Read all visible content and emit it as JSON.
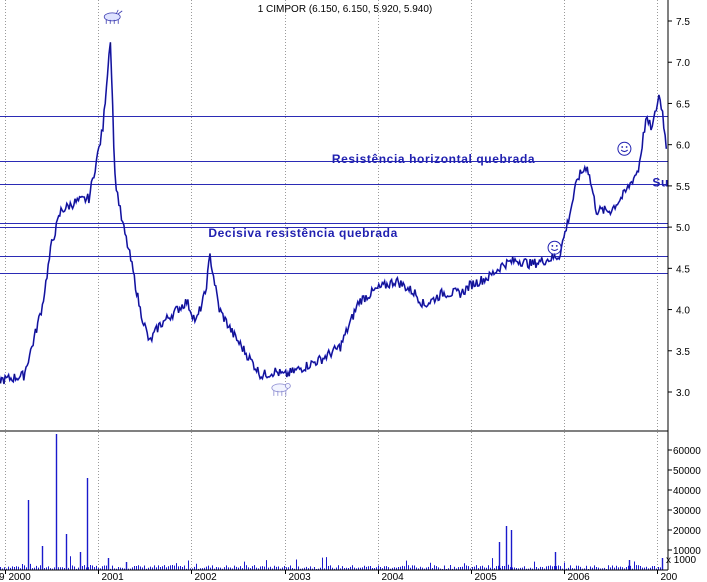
{
  "chart_data": {
    "type": "line",
    "title": "1 CIMPOR (6.150, 6.150, 5.920, 5.940)",
    "x_tick_labels": [
      "9",
      "2000",
      "2001",
      "2002",
      "2003",
      "2004",
      "2005",
      "2006",
      "200"
    ],
    "price_axis": {
      "ticks": [
        3.0,
        3.5,
        4.0,
        4.5,
        5.0,
        5.5,
        6.0,
        6.5,
        7.0,
        7.5
      ],
      "tick_labels": [
        "3.0",
        "3.5",
        "4.0",
        "4.5",
        "5.0",
        "5.5",
        "6.0",
        "6.5",
        "7.0",
        "7.5"
      ],
      "ylim": [
        2.85,
        7.8
      ]
    },
    "volume_axis": {
      "ticks": [
        10000,
        20000,
        30000,
        40000,
        50000,
        60000
      ],
      "tick_labels": [
        "10000",
        "20000",
        "30000",
        "40000",
        "50000",
        "60000"
      ],
      "ylim": [
        0,
        70000
      ],
      "scale_label": "x 1000"
    },
    "grid": "vertical dotted",
    "horizontal_levels": [
      6.35,
      5.8,
      5.52,
      5.05,
      5.0,
      4.65,
      4.44
    ],
    "annotations": [
      {
        "text": "Resistência horizontal quebrada",
        "x": 2004.6,
        "y": 5.78
      },
      {
        "text": "Su",
        "x": 2006.95,
        "y": 5.49
      },
      {
        "text": "Decisiva resistência quebrada",
        "x": 2003.2,
        "y": 4.88
      }
    ],
    "markers": [
      {
        "name": "bull-icon",
        "x": 2001.15,
        "y": 7.55
      },
      {
        "name": "smiley-icon",
        "x": 2005.9,
        "y": 4.75
      },
      {
        "name": "smiley-icon",
        "x": 2006.65,
        "y": 5.95
      },
      {
        "name": "bear-icon",
        "x": 2002.95,
        "y": 3.05
      }
    ],
    "series": [
      {
        "x": [
          1999.12,
          1999.35,
          1999.6,
          1999.85,
          2000.0,
          2000.2,
          2000.3,
          2000.4,
          2000.5,
          2000.6,
          2000.75,
          2000.9,
          2000.98,
          2001.05,
          2001.1,
          2001.13,
          2001.18,
          2001.25,
          2001.35,
          2001.45,
          2001.55,
          2001.65,
          2001.8,
          2001.95,
          2002.05,
          2002.15,
          2002.2,
          2002.3,
          2002.45,
          2002.6,
          2002.75,
          2002.9,
          2003.0,
          2003.2,
          2003.4,
          2003.6,
          2003.8,
          2004.0,
          2004.2,
          2004.4,
          2004.5,
          2004.7,
          2004.9,
          2005.0,
          2005.2,
          2005.35,
          2005.5,
          2005.65,
          2005.8,
          2005.95,
          2006.05,
          2006.15,
          2006.25,
          2006.35,
          2006.5,
          2006.65,
          2006.8,
          2006.88,
          2006.95,
          2007.02,
          2007.06,
          2007.1
        ],
        "values": [
          3.25,
          3.2,
          3.25,
          3.15,
          3.15,
          3.2,
          3.6,
          4.05,
          4.8,
          5.2,
          5.3,
          5.35,
          5.8,
          6.2,
          6.9,
          7.3,
          5.6,
          5.1,
          4.6,
          4.0,
          3.6,
          3.8,
          3.95,
          4.1,
          3.85,
          4.2,
          4.65,
          4.0,
          3.7,
          3.45,
          3.2,
          3.25,
          3.2,
          3.3,
          3.4,
          3.55,
          4.1,
          4.25,
          4.35,
          4.2,
          4.05,
          4.2,
          4.2,
          4.3,
          4.4,
          4.55,
          4.6,
          4.55,
          4.6,
          4.65,
          5.1,
          5.6,
          5.75,
          5.2,
          5.2,
          5.4,
          5.7,
          6.3,
          6.2,
          6.6,
          6.4,
          5.95
        ]
      }
    ],
    "volume_spikes": [
      {
        "x": 2000.25,
        "value": 35000
      },
      {
        "x": 2000.4,
        "value": 12000
      },
      {
        "x": 2000.55,
        "value": 68000
      },
      {
        "x": 2000.65,
        "value": 18000
      },
      {
        "x": 2000.8,
        "value": 9000
      },
      {
        "x": 2000.88,
        "value": 46000
      },
      {
        "x": 2001.1,
        "value": 6000
      },
      {
        "x": 2001.3,
        "value": 4000
      },
      {
        "x": 2005.3,
        "value": 14000
      },
      {
        "x": 2005.38,
        "value": 22000
      },
      {
        "x": 2005.43,
        "value": 20000
      },
      {
        "x": 2005.9,
        "value": 9000
      },
      {
        "x": 2006.7,
        "value": 5000
      },
      {
        "x": 2007.05,
        "value": 6000
      }
    ]
  }
}
